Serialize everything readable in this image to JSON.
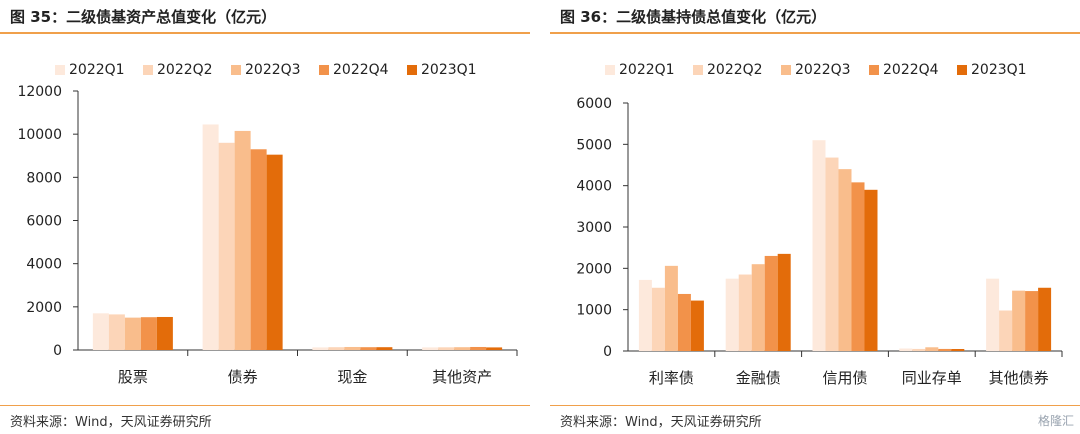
{
  "panels": [
    {
      "title": "图 35：二级债基资产总值变化（亿元）",
      "source": "资料来源：Wind，天风证券研究所",
      "chart_data": {
        "type": "bar",
        "categories": [
          "股票",
          "债券",
          "现金",
          "其他资产"
        ],
        "series": [
          {
            "name": "2022Q1",
            "color": "#fde9dc",
            "values": [
              1700,
              10450,
              120,
              120
            ]
          },
          {
            "name": "2022Q2",
            "color": "#fcd5b8",
            "values": [
              1650,
              9600,
              130,
              125
            ]
          },
          {
            "name": "2022Q3",
            "color": "#f9bd8c",
            "values": [
              1500,
              10150,
              140,
              130
            ]
          },
          {
            "name": "2022Q4",
            "color": "#f2924a",
            "values": [
              1520,
              9300,
              130,
              140
            ]
          },
          {
            "name": "2023Q1",
            "color": "#e36c0a",
            "values": [
              1530,
              9050,
              130,
              120
            ]
          }
        ],
        "ylim": [
          0,
          12000
        ],
        "yticks": [
          0,
          2000,
          4000,
          6000,
          8000,
          10000,
          12000
        ],
        "grid": false,
        "legend": "top"
      }
    },
    {
      "title": "图 36：二级债基持债总值变化（亿元）",
      "source": "资料来源：Wind，天风证券研究所",
      "chart_data": {
        "type": "bar",
        "categories": [
          "利率债",
          "金融债",
          "信用债",
          "同业存单",
          "其他债券"
        ],
        "series": [
          {
            "name": "2022Q1",
            "color": "#fde9dc",
            "values": [
              1720,
              1750,
              5100,
              60,
              1750
            ]
          },
          {
            "name": "2022Q2",
            "color": "#fcd5b8",
            "values": [
              1530,
              1850,
              4680,
              50,
              980
            ]
          },
          {
            "name": "2022Q3",
            "color": "#f9bd8c",
            "values": [
              2060,
              2100,
              4400,
              90,
              1460
            ]
          },
          {
            "name": "2022Q4",
            "color": "#f2924a",
            "values": [
              1380,
              2300,
              4080,
              50,
              1450
            ]
          },
          {
            "name": "2023Q1",
            "color": "#e36c0a",
            "values": [
              1220,
              2350,
              3900,
              40,
              1530
            ]
          }
        ],
        "ylim": [
          0,
          6000
        ],
        "yticks": [
          0,
          1000,
          2000,
          3000,
          4000,
          5000,
          6000
        ],
        "grid": false,
        "legend": "top"
      }
    }
  ],
  "watermark": "格隆汇"
}
